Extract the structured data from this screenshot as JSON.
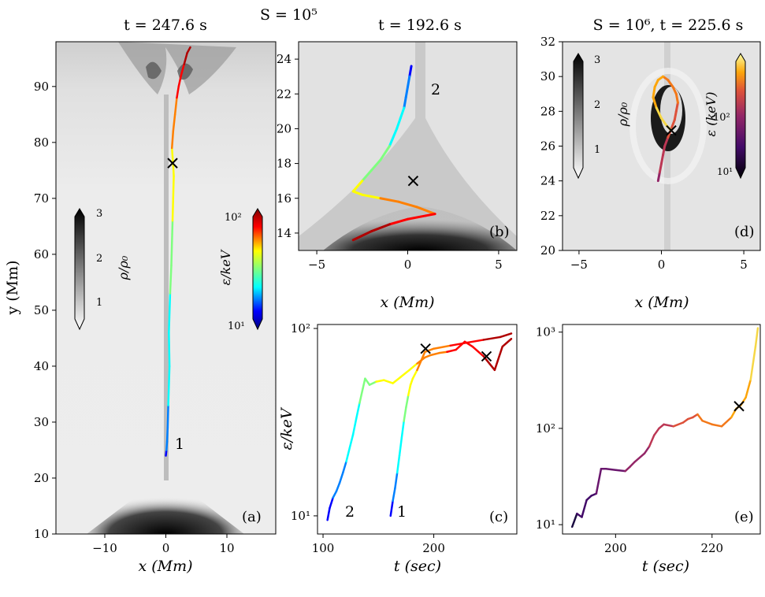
{
  "figure": {
    "top_label": "S = 10⁵",
    "panels": {
      "a": {
        "title": "t = 247.6 s",
        "panel_label": "(a)",
        "xlabel": "x (Mm)",
        "ylabel": "y (Mm)",
        "xlim": [
          -18,
          18
        ],
        "ylim": [
          10,
          98
        ],
        "xticks": [
          -10,
          0,
          10
        ],
        "yticks": [
          10,
          20,
          30,
          40,
          50,
          60,
          70,
          80,
          90
        ],
        "trajectory_label": "1",
        "cbar_density": {
          "label": "ρ/ρ₀",
          "ticks": [
            "1",
            "2",
            "3"
          ]
        },
        "cbar_energy": {
          "label": "ε/keV",
          "ticks": [
            "10¹",
            "10²"
          ]
        }
      },
      "b": {
        "title": "t = 192.6 s",
        "panel_label": "(b)",
        "xlabel": "x (Mm)",
        "xlim": [
          -6,
          6
        ],
        "ylim": [
          13,
          25
        ],
        "xticks": [
          -5,
          0,
          5
        ],
        "yticks": [
          14,
          16,
          18,
          20,
          22,
          24
        ],
        "trajectory_label": "2"
      },
      "c": {
        "panel_label": "(c)",
        "xlabel": "t (sec)",
        "ylabel": "ε/keV",
        "xlim": [
          95,
          275
        ],
        "ylim_log": [
          8,
          105
        ],
        "xticks": [
          100,
          200
        ],
        "yticks": [
          "10¹",
          "10²"
        ],
        "series_labels": [
          "2",
          "1"
        ]
      },
      "d": {
        "title": "S = 10⁶, t = 225.6 s",
        "panel_label": "(d)",
        "xlabel": "x (Mm)",
        "xlim": [
          -6,
          6
        ],
        "ylim": [
          20,
          32
        ],
        "xticks": [
          -5,
          0,
          5
        ],
        "yticks": [
          20,
          22,
          24,
          26,
          28,
          30,
          32
        ],
        "cbar_density": {
          "label": "ρ/ρ₀",
          "ticks": [
            "1",
            "2",
            "3"
          ]
        },
        "cbar_energy": {
          "label": "ε (keV)",
          "ticks": [
            "10¹",
            "10²"
          ]
        }
      },
      "e": {
        "panel_label": "(e)",
        "xlabel": "t (sec)",
        "xlim": [
          189,
          230
        ],
        "ylim_log": [
          8,
          1200
        ],
        "xticks": [
          200,
          220
        ],
        "yticks": [
          "10¹",
          "10²",
          "10³"
        ]
      }
    }
  },
  "chart_data": [
    {
      "panel": "a",
      "type": "line",
      "x": [
        0.0,
        0.1,
        0.2,
        0.3,
        0.4,
        0.6,
        0.5,
        0.7,
        0.9,
        1.0,
        1.1,
        1.2,
        1.3,
        1.2,
        1.0,
        1.2,
        1.5,
        1.8,
        2.1,
        2.5,
        3.0,
        3.5,
        4.0
      ],
      "y": [
        24,
        25,
        26.5,
        29,
        33,
        40,
        46,
        53,
        58,
        62,
        66,
        70,
        74,
        76,
        79,
        82,
        85,
        88,
        90,
        92,
        94,
        96,
        97
      ],
      "marker_x": 1.1,
      "marker_y": 76.3
    },
    {
      "panel": "b",
      "type": "line",
      "x": [
        0.2,
        0.1,
        0.0,
        -0.1,
        -0.2,
        -0.4,
        -0.6,
        -1.0,
        -1.5,
        -2.0,
        -2.5,
        -3.0,
        -2.5,
        -1.5,
        -0.5,
        0.5,
        1.5,
        1.0,
        0.0,
        -1.0,
        -2.0,
        -3.0
      ],
      "y": [
        23.6,
        23.0,
        22.4,
        21.8,
        21.2,
        20.6,
        20.0,
        19.0,
        18.2,
        17.6,
        17.0,
        16.4,
        16.2,
        16.0,
        15.8,
        15.5,
        15.1,
        15.0,
        14.8,
        14.5,
        14.1,
        13.6
      ],
      "marker_x": 0.3,
      "marker_y": 17.0
    },
    {
      "panel": "c",
      "type": "line",
      "series": [
        {
          "name": "2",
          "x": [
            104,
            106,
            109,
            112,
            115,
            118,
            121,
            124,
            127,
            130,
            133,
            136,
            138,
            142,
            148,
            155,
            163,
            170,
            178,
            185,
            192,
            197,
            205,
            212,
            220,
            228,
            235,
            245,
            255,
            262,
            270
          ],
          "y": [
            9.5,
            11,
            12.5,
            13.5,
            15,
            17,
            19.5,
            23,
            27,
            33,
            40,
            48,
            54,
            50,
            52,
            53,
            51,
            55,
            60,
            65,
            70,
            72,
            74,
            75,
            77,
            85,
            80,
            71,
            60,
            80,
            88
          ]
        },
        {
          "name": "1",
          "x": [
            161,
            163,
            165,
            167,
            169,
            171,
            173,
            175,
            177,
            179,
            181,
            185,
            192,
            200,
            215,
            230,
            245,
            260,
            270
          ],
          "y": [
            10,
            12,
            14,
            17,
            21,
            26,
            32,
            38,
            44,
            50,
            54,
            60,
            75,
            78,
            81,
            84,
            87,
            90,
            94
          ]
        }
      ],
      "markers": [
        {
          "x": 192.6,
          "y": 78
        },
        {
          "x": 247.6,
          "y": 71
        }
      ]
    },
    {
      "panel": "d",
      "type": "line",
      "x": [
        -0.2,
        -0.1,
        0.0,
        0.1,
        0.2,
        0.4,
        0.6,
        0.8,
        0.9,
        1.0,
        0.9,
        0.7,
        0.4,
        0.1,
        -0.2,
        -0.4,
        -0.5,
        -0.3,
        0.0,
        0.3,
        0.6
      ],
      "y": [
        24.0,
        24.5,
        25.0,
        25.5,
        26.0,
        26.5,
        27.0,
        27.5,
        28.0,
        28.5,
        29.0,
        29.4,
        29.8,
        30.0,
        29.8,
        29.4,
        28.8,
        28.2,
        27.6,
        27.2,
        26.9
      ],
      "marker_x": 0.6,
      "marker_y": 26.9
    },
    {
      "panel": "e",
      "type": "line",
      "x": [
        191,
        192,
        193,
        194,
        195,
        196,
        197,
        198,
        200,
        202,
        203,
        204,
        206,
        207,
        208,
        209,
        210,
        212,
        214,
        215,
        216,
        217,
        218,
        220,
        222,
        224,
        225,
        226,
        227,
        228,
        229,
        229.5
      ],
      "y": [
        9.5,
        13,
        12,
        18,
        20,
        21,
        38,
        38,
        37,
        36,
        40,
        45,
        55,
        65,
        85,
        100,
        110,
        105,
        115,
        125,
        130,
        140,
        120,
        110,
        105,
        130,
        160,
        175,
        210,
        320,
        700,
        1100
      ],
      "marker_x": 225.6,
      "marker_y": 170
    }
  ]
}
